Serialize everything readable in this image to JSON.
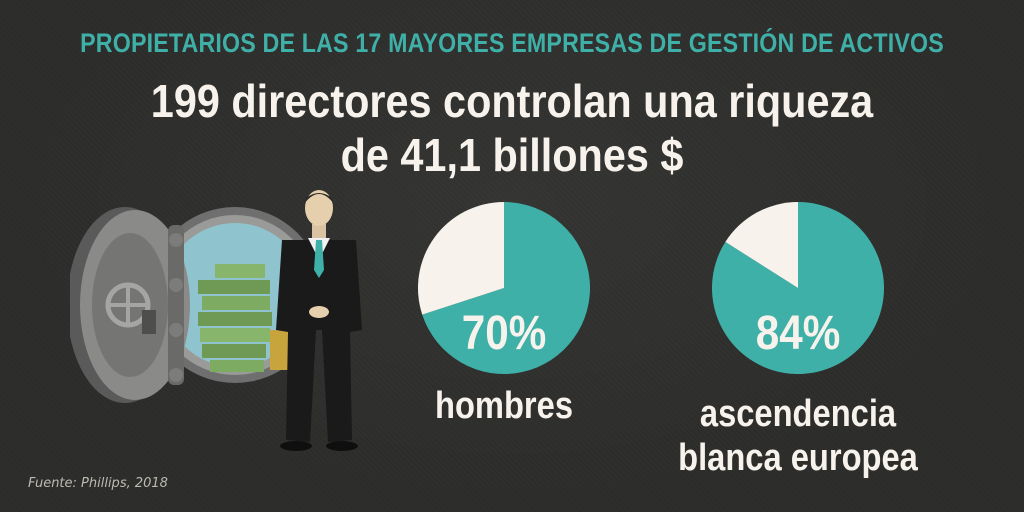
{
  "kicker": "PROPIETARIOS DE LAS 17 MAYORES EMPRESAS DE GESTIÓN DE ACTIVOS",
  "headline": {
    "line1": "199 directores controlan una riqueza",
    "line2": "de 41,1 billones $"
  },
  "source": "Fuente: Phillips, 2018",
  "colors": {
    "background": "#2c2c2a",
    "accent": "#3fb0a8",
    "cream": "#f7f3ec"
  },
  "illustration": {
    "icons": [
      "bank-vault-icon",
      "money-stacks-icon",
      "businessman-icon"
    ]
  },
  "chart_data": [
    {
      "type": "pie",
      "value_label": "70%",
      "label_lines": [
        "hombres"
      ],
      "slices": [
        {
          "name": "hombres",
          "value": 70,
          "color": "#3fb0a8"
        },
        {
          "name": "",
          "value": 30,
          "color": "#f7f3ec"
        }
      ]
    },
    {
      "type": "pie",
      "value_label": "84%",
      "label_lines": [
        "ascendencia",
        "blanca europea"
      ],
      "slices": [
        {
          "name": "ascendencia blanca europea",
          "value": 84,
          "color": "#3fb0a8"
        },
        {
          "name": "",
          "value": 16,
          "color": "#f7f3ec"
        }
      ]
    }
  ]
}
